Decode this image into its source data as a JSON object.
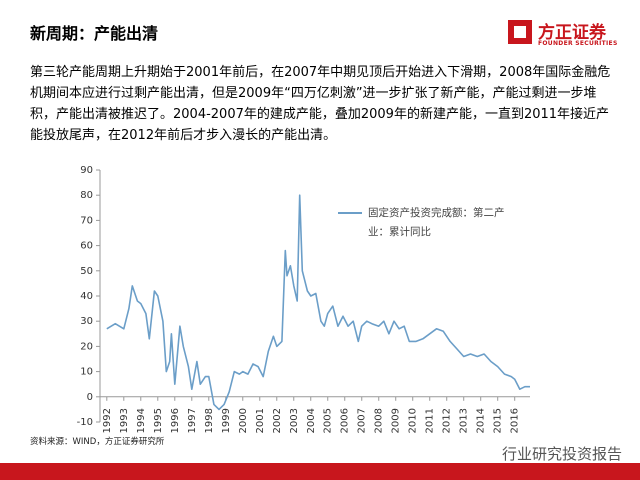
{
  "header": {
    "title": "新周期：产能出清",
    "logo_name": "方正证券",
    "logo_en": "FOUNDER SECURITIES"
  },
  "paragraph": "第三轮产能周期上升期始于2001年前后，在2007年中期见顶后开始进入下滑期，2008年国际金融危机期间本应进行过剩产能出清，但是2009年“四万亿刺激”进一步扩张了新产能，产能过剩进一步堆积，产能出清被推迟了。2004-2007年的建成产能，叠加2009年的新建产能，一直到2011年接近产能投放尾声，在2012年前后才步入漫长的产能出清。",
  "chart_data": {
    "type": "line",
    "x": [
      1992.0,
      1992.5,
      1993.0,
      1993.3,
      1993.5,
      1993.8,
      1994.0,
      1994.3,
      1994.5,
      1994.8,
      1995.0,
      1995.3,
      1995.5,
      1995.7,
      1995.8,
      1996.0,
      1996.3,
      1996.5,
      1996.8,
      1997.0,
      1997.3,
      1997.5,
      1997.8,
      1998.0,
      1998.3,
      1998.6,
      1998.9,
      1999.2,
      1999.5,
      1999.8,
      2000.0,
      2000.3,
      2000.6,
      2000.9,
      2001.2,
      2001.5,
      2001.8,
      2002.0,
      2002.3,
      2002.5,
      2002.6,
      2002.8,
      2003.0,
      2003.2,
      2003.35,
      2003.5,
      2003.8,
      2004.0,
      2004.3,
      2004.6,
      2004.8,
      2005.0,
      2005.3,
      2005.6,
      2005.9,
      2006.2,
      2006.5,
      2006.8,
      2007.0,
      2007.3,
      2007.6,
      2008.0,
      2008.3,
      2008.6,
      2008.9,
      2009.2,
      2009.5,
      2009.8,
      2010.2,
      2010.6,
      2011.0,
      2011.4,
      2011.8,
      2012.2,
      2012.6,
      2013.0,
      2013.4,
      2013.8,
      2014.2,
      2014.6,
      2015.0,
      2015.4,
      2015.8,
      2016.0,
      2016.3,
      2016.6,
      2016.9
    ],
    "series": [
      {
        "name": "固定资产投资完成额：第二产业：累计同比",
        "color": "#6b9ec8",
        "values": [
          27,
          29,
          27,
          35,
          44,
          38,
          37,
          33,
          23,
          42,
          40,
          30,
          10,
          14,
          25,
          5,
          28,
          20,
          12,
          3,
          14,
          5,
          8,
          8,
          -3,
          -5,
          -3,
          2,
          10,
          9,
          10,
          9,
          13,
          12,
          8,
          18,
          24,
          20,
          22,
          58,
          48,
          52,
          44,
          38,
          80,
          50,
          42,
          40,
          41,
          30,
          28,
          33,
          36,
          28,
          32,
          28,
          30,
          22,
          28,
          30,
          29,
          28,
          30,
          25,
          30,
          27,
          28,
          22,
          22,
          23,
          25,
          27,
          26,
          22,
          19,
          16,
          17,
          16,
          17,
          14,
          12,
          9,
          8,
          7,
          3,
          4,
          4
        ]
      }
    ],
    "xlim": [
      1991.6,
      2016.9
    ],
    "xticks": [
      1992,
      1993,
      1994,
      1995,
      1996,
      1997,
      1998,
      1999,
      2000,
      2001,
      2002,
      2003,
      2004,
      2005,
      2006,
      2007,
      2008,
      2009,
      2010,
      2011,
      2012,
      2013,
      2014,
      2015,
      2016
    ],
    "ylim": [
      -10,
      90
    ],
    "yticks": [
      -10,
      0,
      10,
      20,
      30,
      40,
      50,
      60,
      70,
      80,
      90
    ]
  },
  "footer": {
    "source": "资料来源：WIND，方正证券研究所",
    "watermark": "行业研究投资报告"
  }
}
